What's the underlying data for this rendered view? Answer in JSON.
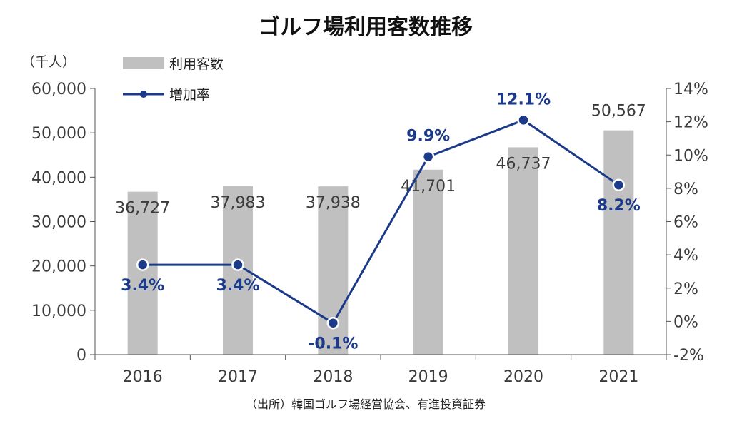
{
  "chart_data": {
    "type": "bar",
    "title": "ゴルフ場利用客数推移",
    "unit_left": "（千人）",
    "categories": [
      "2016",
      "2017",
      "2018",
      "2019",
      "2020",
      "2021"
    ],
    "series": [
      {
        "name": "利用客数",
        "type": "bar",
        "axis": "left",
        "values": [
          36727,
          37983,
          37938,
          41701,
          46737,
          50567
        ],
        "labels": [
          "36,727",
          "37,983",
          "37,938",
          "41,701",
          "46,737",
          "50,567"
        ],
        "color": "#c0c0c0"
      },
      {
        "name": "増加率",
        "type": "line",
        "axis": "right",
        "values": [
          3.4,
          3.4,
          -0.1,
          9.9,
          12.1,
          8.2
        ],
        "labels": [
          "3.4%",
          "3.4%",
          "-0.1%",
          "9.9%",
          "12.1%",
          "8.2%"
        ],
        "color": "#1b3a8a"
      }
    ],
    "ylim_left": [
      0,
      60000
    ],
    "yticks_left": [
      "0",
      "10,000",
      "20,000",
      "30,000",
      "40,000",
      "50,000",
      "60,000"
    ],
    "ylim_right": [
      -2,
      14
    ],
    "yticks_right": [
      "-2%",
      "0%",
      "2%",
      "4%",
      "6%",
      "8%",
      "10%",
      "12%",
      "14%"
    ],
    "grid": false,
    "legend_position": "top-left",
    "source": "（出所）韓国ゴルフ場経営協会、有進投資証券"
  }
}
